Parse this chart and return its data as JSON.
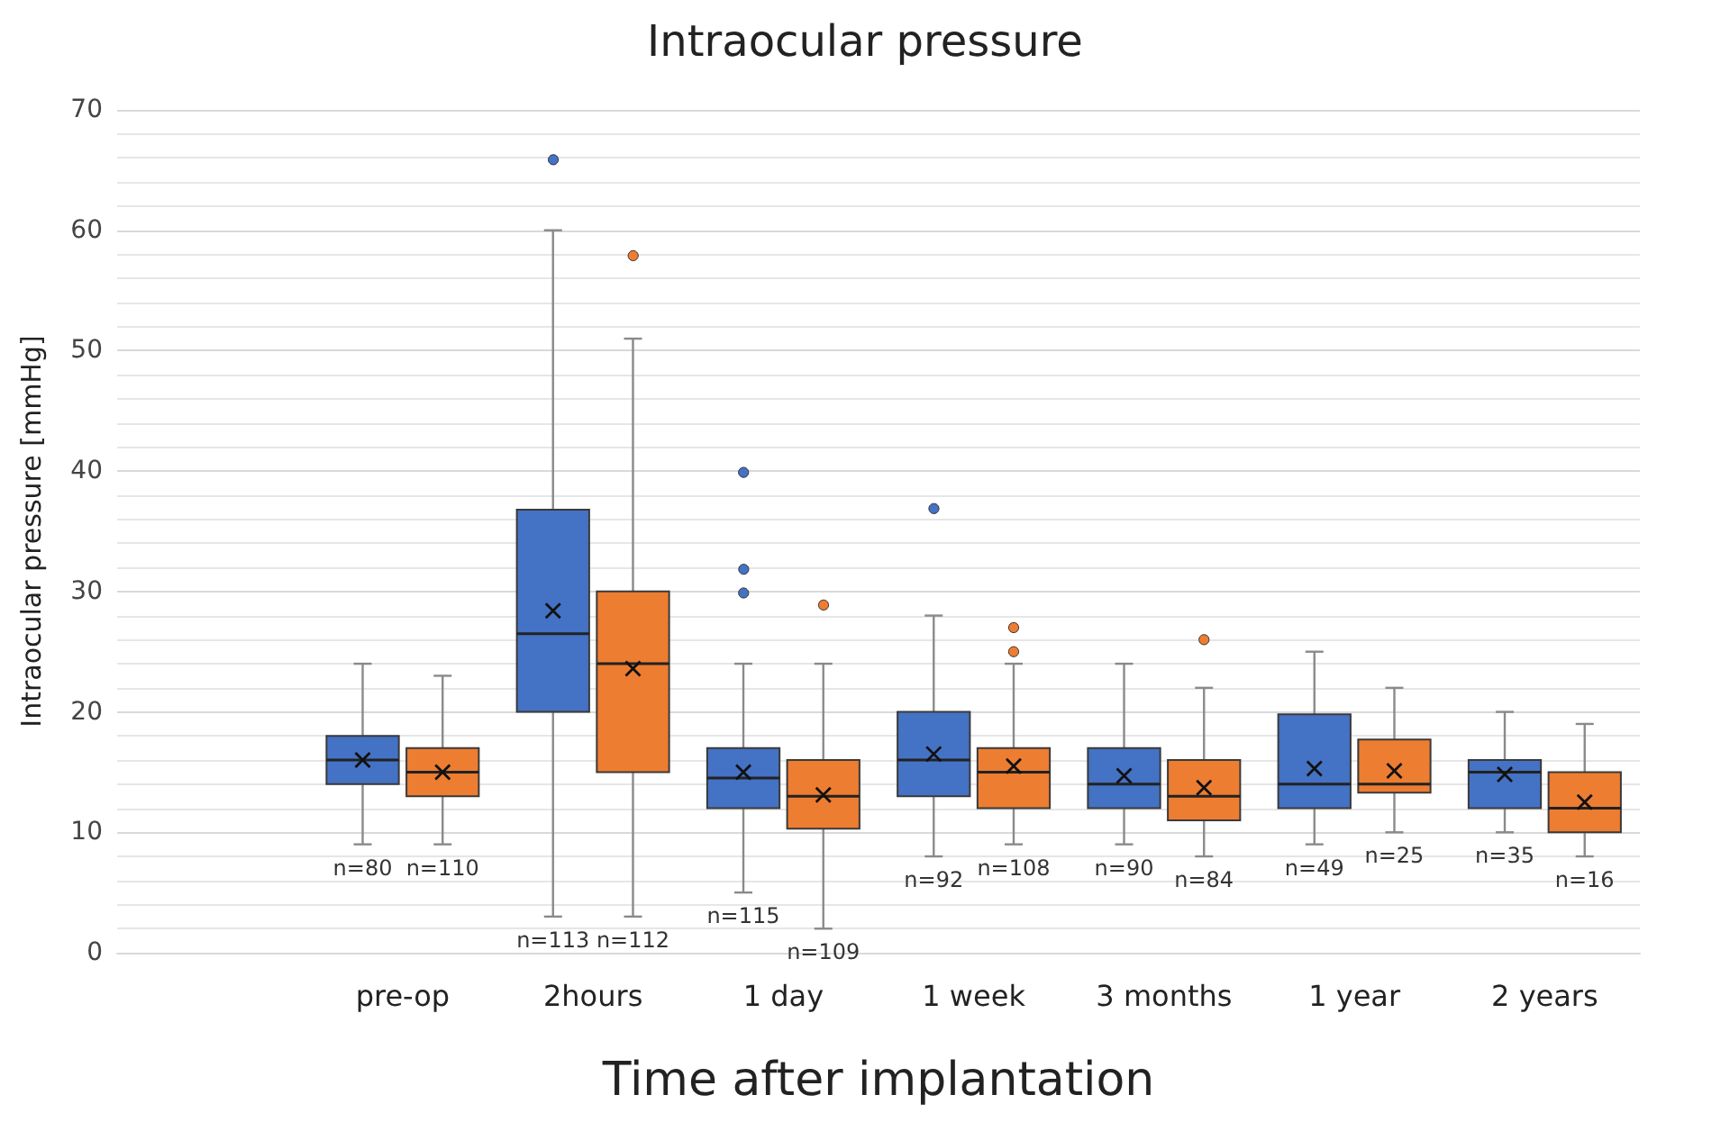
{
  "chart_data": {
    "type": "box",
    "title": "Intraocular pressure",
    "xlabel": "Time after implantation",
    "ylabel": "Intraocular pressure [mmHg]",
    "categories": [
      null,
      "pre-op",
      "2hours",
      "1 day",
      "1 week",
      "3 months",
      "1 year",
      "2 years"
    ],
    "ylim": [
      0,
      70
    ],
    "yticks": [
      0,
      10,
      20,
      30,
      40,
      50,
      60,
      70
    ],
    "grid": true,
    "series": [
      {
        "color": "#4472c4",
        "value_labels": [
          null,
          "n=80",
          "n=113",
          "n=115",
          "n=92",
          "n=90",
          "n=49",
          "n=35"
        ],
        "boxes": [
          null,
          {
            "low": 9,
            "q1": 14,
            "median": 16,
            "q3": 18,
            "high": 24,
            "mean": 16
          },
          {
            "low": 3,
            "q1": 20,
            "median": 26.5,
            "q3": 36.8,
            "high": 60,
            "mean": 28.4,
            "outliers": [
              66
            ]
          },
          {
            "low": 5,
            "q1": 12,
            "median": 14.5,
            "q3": 17,
            "high": 24,
            "mean": 15,
            "outliers": [
              40,
              32,
              30
            ]
          },
          {
            "low": 8,
            "q1": 13,
            "median": 16,
            "q3": 20,
            "high": 28,
            "mean": 16.5,
            "outliers": [
              37
            ]
          },
          {
            "low": 9,
            "q1": 12,
            "median": 14,
            "q3": 17,
            "high": 24,
            "mean": 14.7
          },
          {
            "low": 9,
            "q1": 12,
            "median": 14,
            "q3": 19.8,
            "high": 25,
            "mean": 15.3
          },
          {
            "low": 10,
            "q1": 12,
            "median": 15,
            "q3": 16,
            "high": 20,
            "mean": 14.8
          }
        ]
      },
      {
        "color": "#ed7d31",
        "value_labels": [
          null,
          "n=110",
          "n=112",
          "n=109",
          "n=108",
          "n=84",
          "n=25",
          "n=16"
        ],
        "boxes": [
          null,
          {
            "low": 9,
            "q1": 13,
            "median": 15,
            "q3": 17,
            "high": 23,
            "mean": 15
          },
          {
            "low": 3,
            "q1": 15,
            "median": 24,
            "q3": 30,
            "high": 51,
            "mean": 23.6,
            "outliers": [
              58
            ]
          },
          {
            "low": 2,
            "q1": 10.3,
            "median": 13,
            "q3": 16,
            "high": 24,
            "mean": 13.1,
            "outliers": [
              29
            ]
          },
          {
            "low": 9,
            "q1": 12,
            "median": 15,
            "q3": 17,
            "high": 24,
            "mean": 15.5,
            "outliers": [
              27,
              25
            ]
          },
          {
            "low": 8,
            "q1": 11,
            "median": 13,
            "q3": 16,
            "high": 22,
            "mean": 13.7,
            "outliers": [
              26
            ]
          },
          {
            "low": 10,
            "q1": 13.3,
            "median": 14,
            "q3": 17.7,
            "high": 22,
            "mean": 15.1
          },
          {
            "low": 8,
            "q1": 10,
            "median": 12,
            "q3": 15,
            "high": 19,
            "mean": 12.5
          }
        ]
      }
    ]
  }
}
